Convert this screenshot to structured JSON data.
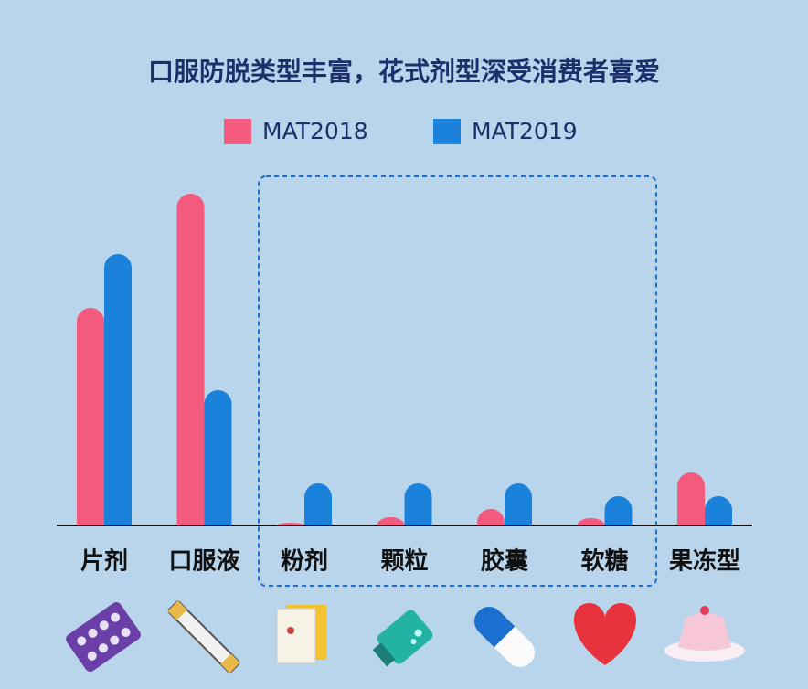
{
  "chart_data": {
    "type": "bar",
    "title": "口服防脱类型丰富，花式剂型深受消费者喜爱",
    "categories": [
      "片剂",
      "口服液",
      "粉剂",
      "颗粒",
      "胶囊",
      "软糖",
      "果冻型"
    ],
    "series": [
      {
        "name": "MAT2018",
        "color": "#f25b7e",
        "values": [
          238,
          363,
          3,
          9,
          18,
          8,
          58
        ]
      },
      {
        "name": "MAT2019",
        "color": "#1b82dc",
        "values": [
          297,
          148,
          46,
          46,
          46,
          32,
          32
        ]
      }
    ]
  }
}
